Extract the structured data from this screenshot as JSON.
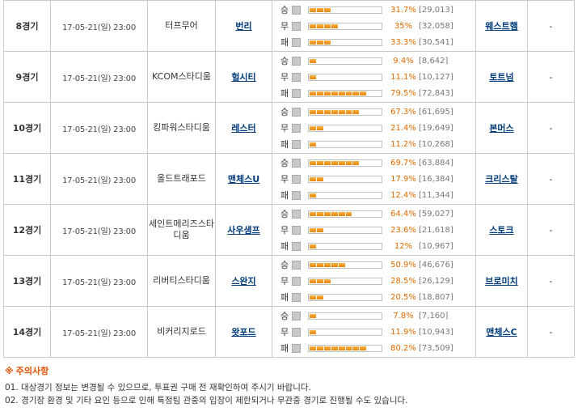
{
  "games": [
    {
      "round": "8경기",
      "date": "17-05-21(일) 23:00",
      "stadium": "터프무어",
      "home": "번리",
      "away": "웨스트햄",
      "extra": "-",
      "votes": [
        {
          "label": "승",
          "pct": "31.7%",
          "count": "[29,013]",
          "fraction": 0.317
        },
        {
          "label": "무",
          "pct": "35%",
          "count": "[32,058]",
          "fraction": 0.35
        },
        {
          "label": "패",
          "pct": "33.3%",
          "count": "[30,541]",
          "fraction": 0.333
        }
      ]
    },
    {
      "round": "9경기",
      "date": "17-05-21(일) 23:00",
      "stadium": "KCOM스타디움",
      "home": "헐시티",
      "away": "토트넘",
      "extra": "-",
      "votes": [
        {
          "label": "승",
          "pct": "9.4%",
          "count": "[8,642]",
          "fraction": 0.094
        },
        {
          "label": "무",
          "pct": "11.1%",
          "count": "[10,127]",
          "fraction": 0.111
        },
        {
          "label": "패",
          "pct": "79.5%",
          "count": "[72,843]",
          "fraction": 0.795
        }
      ]
    },
    {
      "round": "10경기",
      "date": "17-05-21(일) 23:00",
      "stadium": "킹파워스타디움",
      "home": "레스터",
      "away": "본머스",
      "extra": "-",
      "votes": [
        {
          "label": "승",
          "pct": "67.3%",
          "count": "[61,695]",
          "fraction": 0.673
        },
        {
          "label": "무",
          "pct": "21.4%",
          "count": "[19,649]",
          "fraction": 0.214
        },
        {
          "label": "패",
          "pct": "11.2%",
          "count": "[10,268]",
          "fraction": 0.112
        }
      ]
    },
    {
      "round": "11경기",
      "date": "17-05-21(일) 23:00",
      "stadium": "올드트래포드",
      "home": "맨체스U",
      "away": "크리스탈",
      "extra": "-",
      "votes": [
        {
          "label": "승",
          "pct": "69.7%",
          "count": "[63,884]",
          "fraction": 0.697
        },
        {
          "label": "무",
          "pct": "17.9%",
          "count": "[16,384]",
          "fraction": 0.179
        },
        {
          "label": "패",
          "pct": "12.4%",
          "count": "[11,344]",
          "fraction": 0.124
        }
      ]
    },
    {
      "round": "12경기",
      "date": "17-05-21(일) 23:00",
      "stadium": "세인트메리즈스타디움",
      "home": "사우샘프",
      "away": "스토크",
      "extra": "-",
      "votes": [
        {
          "label": "승",
          "pct": "64.4%",
          "count": "[59,027]",
          "fraction": 0.644
        },
        {
          "label": "무",
          "pct": "23.6%",
          "count": "[21,618]",
          "fraction": 0.236
        },
        {
          "label": "패",
          "pct": "12%",
          "count": "[10,967]",
          "fraction": 0.12
        }
      ]
    },
    {
      "round": "13경기",
      "date": "17-05-21(일) 23:00",
      "stadium": "리버티스타디움",
      "home": "스완지",
      "away": "브로미치",
      "extra": "-",
      "votes": [
        {
          "label": "승",
          "pct": "50.9%",
          "count": "[46,676]",
          "fraction": 0.509
        },
        {
          "label": "무",
          "pct": "28.5%",
          "count": "[26,129]",
          "fraction": 0.285
        },
        {
          "label": "패",
          "pct": "20.5%",
          "count": "[18,807]",
          "fraction": 0.205
        }
      ]
    },
    {
      "round": "14경기",
      "date": "17-05-21(일) 23:00",
      "stadium": "비커리지로드",
      "home": "왓포드",
      "away": "맨체스C",
      "extra": "-",
      "votes": [
        {
          "label": "승",
          "pct": "7.8%",
          "count": "[7,160]",
          "fraction": 0.078
        },
        {
          "label": "무",
          "pct": "11.9%",
          "count": "[10,943]",
          "fraction": 0.119
        },
        {
          "label": "패",
          "pct": "80.2%",
          "count": "[73,509]",
          "fraction": 0.802
        }
      ]
    }
  ],
  "notes": {
    "title": "주의사항",
    "items": [
      "01. 대상경기 정보는 변경될 수 있으므로, 투표권 구매 전 재확인하여 주시기 바랍니다.",
      "02. 경기장 환경 및 기타 요인 등으로 인해 특정팀 관중의 입장이 제한되거나 무관중 경기로 진행될 수도 있습니다."
    ]
  },
  "colors": {
    "bar_fill": "#f0a020",
    "pct_text": "#e06b00",
    "team_link": "#003b7a",
    "notes_title": "#e05000"
  }
}
